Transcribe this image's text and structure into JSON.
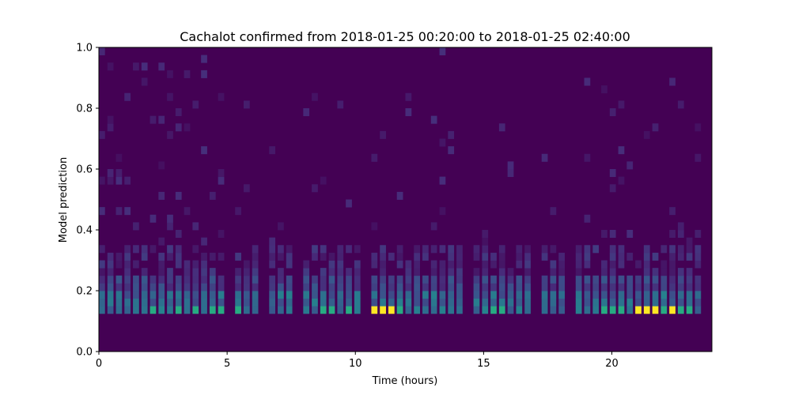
{
  "chart_data": {
    "type": "heatmap",
    "title": "Cachalot confirmed from 2018-01-25 00:20:00 to 2018-01-25 02:40:00",
    "xlabel": "Time (hours)",
    "ylabel": "Model prediction",
    "xlim": [
      0,
      23.9
    ],
    "ylim": [
      0,
      1
    ],
    "x_ticks": [
      0,
      5,
      10,
      15,
      20
    ],
    "x_tick_labels": [
      "0",
      "5",
      "10",
      "15",
      "20"
    ],
    "y_ticks": [
      0.0,
      0.2,
      0.4,
      0.6,
      0.8,
      1.0
    ],
    "y_tick_labels": [
      "0.0",
      "0.2",
      "0.4",
      "0.6",
      "0.8",
      "1.0"
    ],
    "grid": false,
    "colormap": "viridis",
    "n_columns": 72,
    "bin_width": 0.025,
    "bright_bin": 0.1375,
    "bright_columns": [
      32,
      33,
      34,
      63,
      64,
      65,
      67
    ],
    "medium_columns": [
      6,
      9,
      11,
      13,
      14,
      16,
      26,
      27,
      29,
      35,
      46,
      47,
      59,
      60,
      61,
      66,
      68,
      69
    ]
  }
}
